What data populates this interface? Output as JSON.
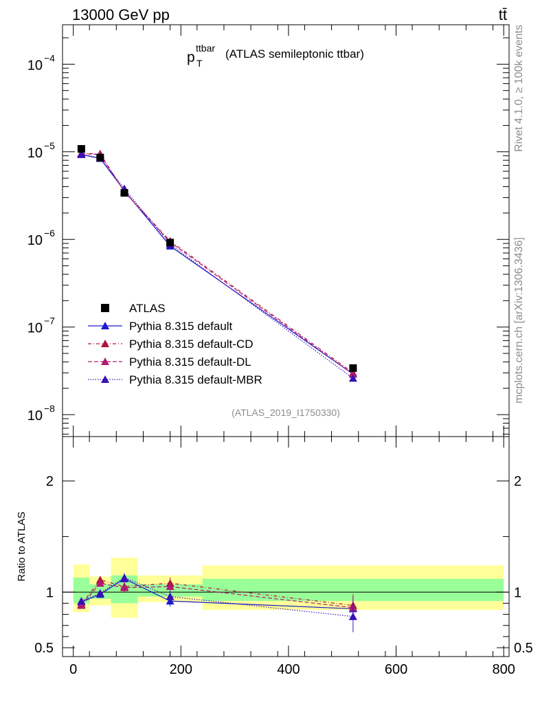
{
  "header": {
    "left": "13000 GeV pp",
    "right": "tt̄"
  },
  "side_labels": {
    "top": "Rivet 4.1.0, ≥ 100k events",
    "bottom": "mcplots.cern.ch [arXiv:1306.3436]"
  },
  "chart_data": {
    "type": "line",
    "title_main": "p",
    "title_sup": "ttbar",
    "title_sub": "T",
    "title_rest": "(ATLAS semileptonic ttbar)",
    "watermark": "(ATLAS_2019_I1750330)",
    "x_range": [
      -20,
      810
    ],
    "x_ticks": [
      0,
      200,
      400,
      600,
      800
    ],
    "x_tick_labels": [
      "0",
      "200",
      "400",
      "600",
      "800"
    ],
    "main_log_range": [
      -8.25,
      -3.55
    ],
    "main_ticks": [
      {
        "exp": -4,
        "base": "10",
        "sup": "−4"
      },
      {
        "exp": -5,
        "base": "10",
        "sup": "−5"
      },
      {
        "exp": -6,
        "base": "10",
        "sup": "−6"
      },
      {
        "exp": -7,
        "base": "10",
        "sup": "−7"
      },
      {
        "exp": -8,
        "base": "10",
        "sup": "−8"
      }
    ],
    "ratio_ylabel": "Ratio to ATLAS",
    "ratio_range": [
      0.42,
      2.4
    ],
    "ratio_ticks": [
      {
        "v": 0.5,
        "label": "0.5"
      },
      {
        "v": 1,
        "label": "1"
      },
      {
        "v": 2,
        "label": "2"
      }
    ],
    "x": [
      15,
      50,
      95,
      180,
      520
    ],
    "atlas": {
      "name": "ATLAS",
      "values": [
        1.08e-05,
        8.6e-06,
        3.4e-06,
        9.2e-07,
        3.4e-08
      ]
    },
    "bins": [
      {
        "lo": 0,
        "hi": 30,
        "yellow": [
          0.82,
          1.25
        ],
        "green": [
          0.9,
          1.13
        ]
      },
      {
        "lo": 30,
        "hi": 70,
        "yellow": [
          0.88,
          1.14
        ],
        "green": [
          0.94,
          1.07
        ]
      },
      {
        "lo": 70,
        "hi": 120,
        "yellow": [
          0.77,
          1.31
        ],
        "green": [
          0.9,
          1.15
        ]
      },
      {
        "lo": 120,
        "hi": 240,
        "yellow": [
          0.91,
          1.15
        ],
        "green": [
          0.96,
          1.07
        ]
      },
      {
        "lo": 240,
        "hi": 800,
        "yellow": [
          0.84,
          1.24
        ],
        "green": [
          0.92,
          1.12
        ]
      }
    ],
    "series": [
      {
        "name": "Pythia 8.315 default",
        "color": "#1a1acc",
        "dash": "",
        "values": [
          9.3e-06,
          8.4e-06,
          3.6e-06,
          8.4e-07,
          2.9e-08
        ],
        "ratio": [
          0.91,
          0.98,
          1.12,
          0.92,
          0.85
        ],
        "err": [
          0.03,
          0.03,
          0.04,
          0.05,
          0.1
        ]
      },
      {
        "name": "Pythia 8.315 default-CD",
        "color": "#b0103a",
        "dash": "5,3,1,3",
        "values": [
          9.6e-06,
          9.5e-06,
          3.5e-06,
          9.6e-07,
          3e-08
        ],
        "ratio": [
          0.89,
          1.11,
          1.05,
          1.08,
          0.88
        ],
        "err": [
          0.03,
          0.03,
          0.04,
          0.05,
          0.1
        ]
      },
      {
        "name": "Pythia 8.315 default-DL",
        "color": "#b01a70",
        "dash": "6,3",
        "values": [
          9.5e-06,
          9.3e-06,
          3.5e-06,
          9.3e-07,
          2.9e-08
        ],
        "ratio": [
          0.88,
          1.08,
          1.04,
          1.05,
          0.86
        ],
        "err": [
          0.03,
          0.03,
          0.04,
          0.05,
          0.1
        ]
      },
      {
        "name": "Pythia 8.315 default-MBR",
        "color": "#3a10b8",
        "dash": "1.5,2",
        "values": [
          9.4e-06,
          8.5e-06,
          3.8e-06,
          8.8e-07,
          2.6e-08
        ],
        "ratio": [
          0.92,
          0.99,
          1.13,
          0.96,
          0.78
        ],
        "err": [
          0.03,
          0.03,
          0.04,
          0.05,
          0.14
        ]
      }
    ],
    "legend_position": "bottom-left"
  }
}
